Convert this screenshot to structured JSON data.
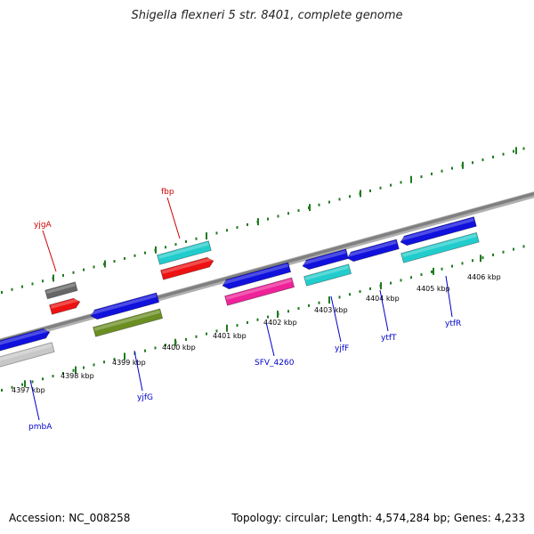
{
  "title": "Shigella flexneri 5 str. 8401, complete genome",
  "footer": {
    "accession": "Accession: NC_008258",
    "summary": "Topology: circular; Length: 4,574,284 bp; Genes: 4,233"
  },
  "scale_labels": [
    "4397 kbp",
    "4398 kbp",
    "4399 kbp",
    "4400 kbp",
    "4401 kbp",
    "4402 kbp",
    "4403 kbp",
    "4404 kbp",
    "4405 kbp",
    "4406 kbp"
  ],
  "gene_labels": [
    {
      "name": "yjgA",
      "color": "#cc0000"
    },
    {
      "name": "fbp",
      "color": "#cc0000"
    },
    {
      "name": "pmbA",
      "color": "#0000cc"
    },
    {
      "name": "yjfG",
      "color": "#0000cc"
    },
    {
      "name": "SFV_4260",
      "color": "#0000cc"
    },
    {
      "name": "yjfF",
      "color": "#0000cc"
    },
    {
      "name": "ytfT",
      "color": "#0000cc"
    },
    {
      "name": "ytfR",
      "color": "#0000cc"
    }
  ],
  "colors": {
    "backbone": "#808080",
    "tick": "#1f7a1f",
    "blue": "#1111dd",
    "cyan": "#22cccc",
    "red": "#ee1111",
    "grey": "#666666",
    "lightgrey": "#c8c8c8",
    "olive": "#6b8e23",
    "magenta": "#ee2299"
  }
}
